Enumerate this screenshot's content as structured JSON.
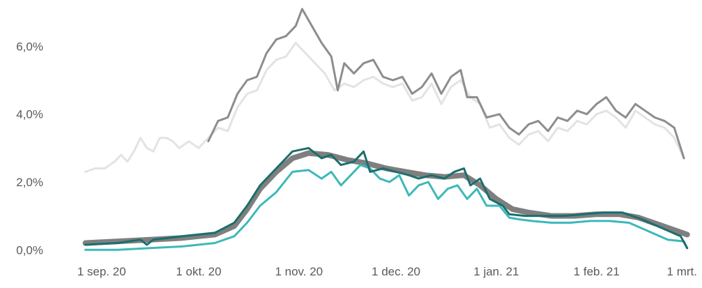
{
  "chart_data": {
    "type": "line",
    "title": "",
    "xlabel": "",
    "ylabel": "",
    "x_range": [
      "2020-08-20",
      "2021-03-03"
    ],
    "ylim": [
      -0.2,
      7.2
    ],
    "grid": false,
    "legend": "none",
    "x_ticks": [
      {
        "date": "2020-09-01",
        "label": "1 sep. 20"
      },
      {
        "date": "2020-10-01",
        "label": "1 okt. 20"
      },
      {
        "date": "2020-11-01",
        "label": "1 nov. 20"
      },
      {
        "date": "2020-12-01",
        "label": "1 dec. 20"
      },
      {
        "date": "2021-01-01",
        "label": "1 jan. 21"
      },
      {
        "date": "2021-02-01",
        "label": "1 feb. 21"
      },
      {
        "date": "2021-03-01",
        "label": "1 mrt."
      }
    ],
    "y_ticks": [
      {
        "value": 0,
        "label": "0,0%"
      },
      {
        "value": 2,
        "label": "2,0%"
      },
      {
        "value": 4,
        "label": "4,0%"
      },
      {
        "value": 6,
        "label": "6,0%"
      }
    ],
    "series": [
      {
        "color": "#e3e3e3",
        "width": 3,
        "points": [
          [
            "2020-08-27",
            2.3
          ],
          [
            "2020-08-30",
            2.4
          ],
          [
            "2020-09-02",
            2.4
          ],
          [
            "2020-09-05",
            2.6
          ],
          [
            "2020-09-07",
            2.8
          ],
          [
            "2020-09-09",
            2.6
          ],
          [
            "2020-09-11",
            2.9
          ],
          [
            "2020-09-13",
            3.3
          ],
          [
            "2020-09-15",
            3.0
          ],
          [
            "2020-09-17",
            2.9
          ],
          [
            "2020-09-19",
            3.3
          ],
          [
            "2020-09-21",
            3.3
          ],
          [
            "2020-09-23",
            3.2
          ],
          [
            "2020-09-25",
            3.0
          ],
          [
            "2020-09-28",
            3.2
          ],
          [
            "2020-10-01",
            3.0
          ],
          [
            "2020-10-04",
            3.3
          ],
          [
            "2020-10-07",
            3.6
          ],
          [
            "2020-10-10",
            3.5
          ],
          [
            "2020-10-13",
            4.2
          ],
          [
            "2020-10-16",
            4.6
          ],
          [
            "2020-10-19",
            4.7
          ],
          [
            "2020-10-22",
            5.3
          ],
          [
            "2020-10-25",
            5.6
          ],
          [
            "2020-10-28",
            5.7
          ],
          [
            "2020-10-31",
            6.1
          ],
          [
            "2020-11-03",
            5.8
          ],
          [
            "2020-11-06",
            5.5
          ],
          [
            "2020-11-09",
            5.2
          ],
          [
            "2020-11-12",
            4.7
          ],
          [
            "2020-11-15",
            4.9
          ],
          [
            "2020-11-18",
            4.8
          ],
          [
            "2020-11-21",
            5.0
          ],
          [
            "2020-11-24",
            5.1
          ],
          [
            "2020-11-27",
            4.9
          ],
          [
            "2020-11-30",
            4.8
          ],
          [
            "2020-12-03",
            4.9
          ],
          [
            "2020-12-06",
            4.4
          ],
          [
            "2020-12-09",
            4.5
          ],
          [
            "2020-12-12",
            4.9
          ],
          [
            "2020-12-15",
            4.3
          ],
          [
            "2020-12-18",
            4.8
          ],
          [
            "2020-12-21",
            5.0
          ],
          [
            "2020-12-24",
            4.5
          ],
          [
            "2020-12-27",
            4.3
          ],
          [
            "2020-12-30",
            3.6
          ],
          [
            "2021-01-02",
            3.7
          ],
          [
            "2021-01-05",
            3.3
          ],
          [
            "2021-01-08",
            3.1
          ],
          [
            "2021-01-11",
            3.4
          ],
          [
            "2021-01-14",
            3.5
          ],
          [
            "2021-01-17",
            3.2
          ],
          [
            "2021-01-20",
            3.6
          ],
          [
            "2021-01-23",
            3.5
          ],
          [
            "2021-01-26",
            3.8
          ],
          [
            "2021-01-29",
            3.7
          ],
          [
            "2021-02-01",
            4.0
          ],
          [
            "2021-02-04",
            4.1
          ],
          [
            "2021-02-07",
            3.9
          ],
          [
            "2021-02-10",
            3.6
          ],
          [
            "2021-02-13",
            4.1
          ],
          [
            "2021-02-16",
            3.9
          ],
          [
            "2021-02-19",
            3.7
          ],
          [
            "2021-02-22",
            3.6
          ],
          [
            "2021-02-25",
            3.3
          ],
          [
            "2021-02-28",
            2.7
          ]
        ]
      },
      {
        "color": "#8d8d8d",
        "width": 3,
        "points": [
          [
            "2020-10-04",
            3.2
          ],
          [
            "2020-10-07",
            3.8
          ],
          [
            "2020-10-10",
            3.9
          ],
          [
            "2020-10-13",
            4.6
          ],
          [
            "2020-10-16",
            5.0
          ],
          [
            "2020-10-19",
            5.1
          ],
          [
            "2020-10-22",
            5.8
          ],
          [
            "2020-10-25",
            6.2
          ],
          [
            "2020-10-28",
            6.3
          ],
          [
            "2020-10-31",
            6.6
          ],
          [
            "2020-11-02",
            7.1
          ],
          [
            "2020-11-05",
            6.6
          ],
          [
            "2020-11-08",
            6.1
          ],
          [
            "2020-11-11",
            5.7
          ],
          [
            "2020-11-13",
            4.7
          ],
          [
            "2020-11-15",
            5.5
          ],
          [
            "2020-11-18",
            5.2
          ],
          [
            "2020-11-21",
            5.5
          ],
          [
            "2020-11-24",
            5.6
          ],
          [
            "2020-11-27",
            5.1
          ],
          [
            "2020-11-30",
            5.0
          ],
          [
            "2020-12-03",
            5.1
          ],
          [
            "2020-12-06",
            4.6
          ],
          [
            "2020-12-09",
            4.8
          ],
          [
            "2020-12-12",
            5.2
          ],
          [
            "2020-12-15",
            4.6
          ],
          [
            "2020-12-18",
            5.1
          ],
          [
            "2020-12-21",
            5.3
          ],
          [
            "2020-12-23",
            4.5
          ],
          [
            "2020-12-26",
            4.5
          ],
          [
            "2020-12-29",
            3.9
          ],
          [
            "2021-01-02",
            4.0
          ],
          [
            "2021-01-05",
            3.6
          ],
          [
            "2021-01-08",
            3.4
          ],
          [
            "2021-01-11",
            3.7
          ],
          [
            "2021-01-14",
            3.8
          ],
          [
            "2021-01-17",
            3.5
          ],
          [
            "2021-01-20",
            3.9
          ],
          [
            "2021-01-23",
            3.8
          ],
          [
            "2021-01-26",
            4.1
          ],
          [
            "2021-01-29",
            4.0
          ],
          [
            "2021-02-01",
            4.3
          ],
          [
            "2021-02-04",
            4.5
          ],
          [
            "2021-02-07",
            4.1
          ],
          [
            "2021-02-10",
            3.9
          ],
          [
            "2021-02-13",
            4.3
          ],
          [
            "2021-02-16",
            4.1
          ],
          [
            "2021-02-19",
            3.9
          ],
          [
            "2021-02-22",
            3.8
          ],
          [
            "2021-02-25",
            3.6
          ],
          [
            "2021-02-28",
            2.7
          ]
        ]
      },
      {
        "color": "#7f7f7f",
        "width": 8,
        "points": [
          [
            "2020-08-27",
            0.2
          ],
          [
            "2020-09-06",
            0.25
          ],
          [
            "2020-09-16",
            0.3
          ],
          [
            "2020-09-26",
            0.35
          ],
          [
            "2020-10-06",
            0.45
          ],
          [
            "2020-10-12",
            0.7
          ],
          [
            "2020-10-16",
            1.2
          ],
          [
            "2020-10-20",
            1.8
          ],
          [
            "2020-10-25",
            2.3
          ],
          [
            "2020-10-30",
            2.7
          ],
          [
            "2020-11-04",
            2.85
          ],
          [
            "2020-11-10",
            2.8
          ],
          [
            "2020-11-16",
            2.65
          ],
          [
            "2020-11-22",
            2.55
          ],
          [
            "2020-11-28",
            2.4
          ],
          [
            "2020-12-04",
            2.3
          ],
          [
            "2020-12-10",
            2.2
          ],
          [
            "2020-12-16",
            2.15
          ],
          [
            "2020-12-22",
            2.2
          ],
          [
            "2020-12-27",
            1.9
          ],
          [
            "2021-01-01",
            1.5
          ],
          [
            "2021-01-06",
            1.2
          ],
          [
            "2021-01-11",
            1.1
          ],
          [
            "2021-01-18",
            1.0
          ],
          [
            "2021-01-25",
            1.0
          ],
          [
            "2021-02-01",
            1.05
          ],
          [
            "2021-02-08",
            1.05
          ],
          [
            "2021-02-14",
            0.95
          ],
          [
            "2021-02-20",
            0.75
          ],
          [
            "2021-02-26",
            0.55
          ],
          [
            "2021-03-01",
            0.45
          ]
        ]
      },
      {
        "color": "#3db8b8",
        "width": 3,
        "points": [
          [
            "2020-08-27",
            0.0
          ],
          [
            "2020-09-06",
            0.0
          ],
          [
            "2020-09-16",
            0.05
          ],
          [
            "2020-09-26",
            0.1
          ],
          [
            "2020-10-06",
            0.2
          ],
          [
            "2020-10-12",
            0.4
          ],
          [
            "2020-10-16",
            0.8
          ],
          [
            "2020-10-20",
            1.3
          ],
          [
            "2020-10-25",
            1.7
          ],
          [
            "2020-10-30",
            2.3
          ],
          [
            "2020-11-04",
            2.35
          ],
          [
            "2020-11-08",
            2.1
          ],
          [
            "2020-11-11",
            2.3
          ],
          [
            "2020-11-14",
            1.9
          ],
          [
            "2020-11-17",
            2.2
          ],
          [
            "2020-11-20",
            2.5
          ],
          [
            "2020-11-23",
            2.4
          ],
          [
            "2020-11-26",
            2.1
          ],
          [
            "2020-11-29",
            2.0
          ],
          [
            "2020-12-02",
            2.2
          ],
          [
            "2020-12-05",
            1.6
          ],
          [
            "2020-12-08",
            1.9
          ],
          [
            "2020-12-11",
            2.0
          ],
          [
            "2020-12-14",
            1.5
          ],
          [
            "2020-12-17",
            1.8
          ],
          [
            "2020-12-20",
            1.9
          ],
          [
            "2020-12-23",
            1.5
          ],
          [
            "2020-12-26",
            1.8
          ],
          [
            "2020-12-29",
            1.3
          ],
          [
            "2021-01-02",
            1.3
          ],
          [
            "2021-01-05",
            0.95
          ],
          [
            "2021-01-08",
            0.9
          ],
          [
            "2021-01-12",
            0.85
          ],
          [
            "2021-01-18",
            0.8
          ],
          [
            "2021-01-24",
            0.8
          ],
          [
            "2021-01-30",
            0.85
          ],
          [
            "2021-02-05",
            0.85
          ],
          [
            "2021-02-11",
            0.8
          ],
          [
            "2021-02-17",
            0.55
          ],
          [
            "2021-02-23",
            0.3
          ],
          [
            "2021-02-28",
            0.25
          ],
          [
            "2021-03-01",
            0.05
          ]
        ]
      },
      {
        "color": "#1b6e6e",
        "width": 3,
        "points": [
          [
            "2020-08-27",
            0.15
          ],
          [
            "2020-09-06",
            0.2
          ],
          [
            "2020-09-13",
            0.3
          ],
          [
            "2020-09-15",
            0.15
          ],
          [
            "2020-09-17",
            0.3
          ],
          [
            "2020-09-26",
            0.4
          ],
          [
            "2020-10-06",
            0.5
          ],
          [
            "2020-10-12",
            0.8
          ],
          [
            "2020-10-16",
            1.3
          ],
          [
            "2020-10-20",
            1.9
          ],
          [
            "2020-10-25",
            2.4
          ],
          [
            "2020-10-30",
            2.9
          ],
          [
            "2020-11-04",
            3.0
          ],
          [
            "2020-11-08",
            2.7
          ],
          [
            "2020-11-11",
            2.8
          ],
          [
            "2020-11-14",
            2.5
          ],
          [
            "2020-11-18",
            2.6
          ],
          [
            "2020-11-21",
            2.9
          ],
          [
            "2020-11-23",
            2.3
          ],
          [
            "2020-11-27",
            2.4
          ],
          [
            "2020-12-01",
            2.3
          ],
          [
            "2020-12-05",
            2.2
          ],
          [
            "2020-12-08",
            2.1
          ],
          [
            "2020-12-12",
            2.2
          ],
          [
            "2020-12-16",
            2.1
          ],
          [
            "2020-12-19",
            2.3
          ],
          [
            "2020-12-22",
            2.4
          ],
          [
            "2020-12-24",
            1.9
          ],
          [
            "2020-12-27",
            2.1
          ],
          [
            "2020-12-30",
            1.5
          ],
          [
            "2021-01-03",
            1.3
          ],
          [
            "2021-01-05",
            1.05
          ],
          [
            "2021-01-10",
            1.0
          ],
          [
            "2021-01-16",
            1.0
          ],
          [
            "2021-01-22",
            1.0
          ],
          [
            "2021-01-28",
            1.05
          ],
          [
            "2021-02-03",
            1.1
          ],
          [
            "2021-02-09",
            1.1
          ],
          [
            "2021-02-15",
            0.9
          ],
          [
            "2021-02-21",
            0.65
          ],
          [
            "2021-02-27",
            0.4
          ],
          [
            "2021-03-01",
            0.05
          ]
        ]
      }
    ]
  }
}
